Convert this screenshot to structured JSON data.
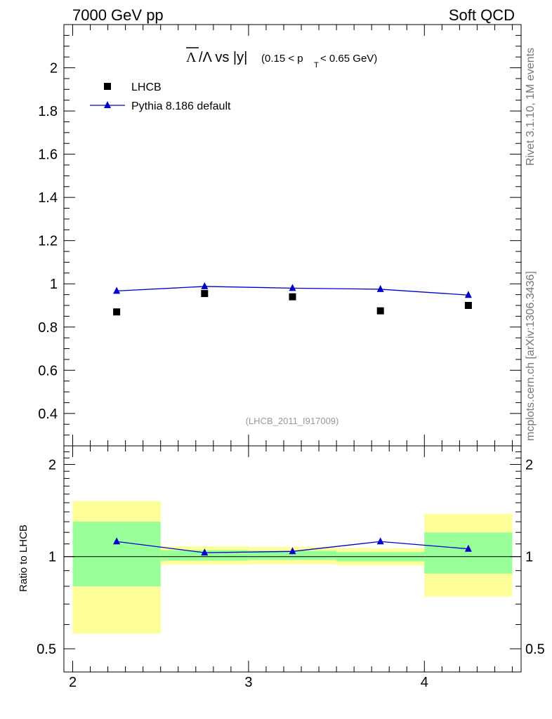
{
  "header": {
    "left": "7000 GeV pp",
    "right": "Soft QCD"
  },
  "side_labels": {
    "rivet": "Rivet 3.1.10,  1M events",
    "source": "mcplots.cern.ch [arXiv:1306.3436]"
  },
  "chart_data": [
    {
      "type": "scatter",
      "title": "Λ̄/Λ vs |y|",
      "title_parts": {
        "main": "/Λ vs |y|",
        "main_symbol": "Λ",
        "cut_open": "(0.15 < p",
        "cut_sub": "T",
        "cut_close": " < 0.65 GeV)"
      },
      "watermark": "(LHCB_2011_I917009)",
      "xlim": [
        1.95,
        4.55
      ],
      "ylim": [
        0.25,
        2.2
      ],
      "yticks": [
        0.4,
        0.6,
        0.8,
        1,
        1.2,
        1.4,
        1.6,
        1.8,
        2
      ],
      "ytick_labels": [
        "0.4",
        "0.6",
        "0.8",
        "1",
        "1.2",
        "1.4",
        "1.6",
        "1.8",
        "2"
      ],
      "legend_position": "top-left",
      "series": [
        {
          "name": "LHCB",
          "marker": "square",
          "color": "#000000",
          "x": [
            2.25,
            2.75,
            3.25,
            3.75,
            4.25
          ],
          "y": [
            0.87,
            0.955,
            0.94,
            0.875,
            0.9
          ]
        },
        {
          "name": "Pythia 8.186 default",
          "marker": "triangle",
          "color": "#0000cc",
          "x": [
            2.25,
            2.75,
            3.25,
            3.75,
            4.25
          ],
          "y": [
            0.967,
            0.988,
            0.98,
            0.975,
            0.948
          ]
        }
      ]
    },
    {
      "type": "line",
      "ylabel": "Ratio to LHCB",
      "yscale": "log",
      "xlim": [
        1.95,
        4.55
      ],
      "ylim": [
        0.42,
        2.3
      ],
      "xticks": [
        2,
        3,
        4
      ],
      "xtick_labels": [
        "2",
        "3",
        "4"
      ],
      "yticks": [
        0.5,
        1,
        2
      ],
      "ytick_labels": [
        "0.5",
        "1",
        "2"
      ],
      "reference_line": 1,
      "bands": [
        {
          "x0": 2.0,
          "x1": 2.5,
          "yellow": [
            0.56,
            1.52
          ],
          "green": [
            0.8,
            1.3
          ]
        },
        {
          "x0": 2.5,
          "x1": 3.0,
          "yellow": [
            0.94,
            1.08
          ],
          "green": [
            0.97,
            1.05
          ]
        },
        {
          "x0": 3.0,
          "x1": 3.5,
          "yellow": [
            0.945,
            1.075
          ],
          "green": [
            0.975,
            1.045
          ]
        },
        {
          "x0": 3.5,
          "x1": 4.0,
          "yellow": [
            0.935,
            1.065
          ],
          "green": [
            0.965,
            1.035
          ]
        },
        {
          "x0": 4.0,
          "x1": 4.5,
          "yellow": [
            0.74,
            1.38
          ],
          "green": [
            0.88,
            1.2
          ]
        }
      ],
      "series": [
        {
          "name": "Pythia 8.186 default",
          "marker": "triangle",
          "color": "#0000cc",
          "x": [
            2.25,
            2.75,
            3.25,
            3.75,
            4.25
          ],
          "y": [
            1.12,
            1.03,
            1.04,
            1.12,
            1.06
          ]
        }
      ]
    }
  ],
  "colors": {
    "band_yellow": "#ffff99",
    "band_green": "#99ff99",
    "mc_line": "#0000cc",
    "watermark": "#999999",
    "side_label": "#777777"
  }
}
